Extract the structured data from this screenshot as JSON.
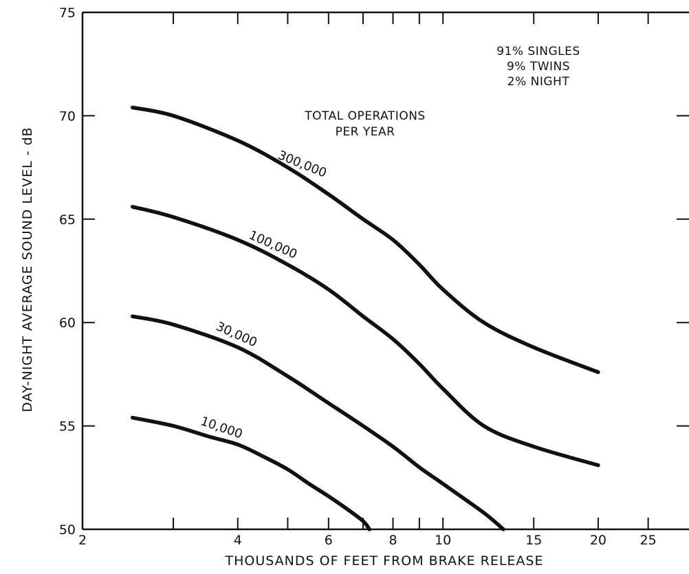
{
  "chart_data": {
    "type": "line",
    "xlabel": "THOUSANDS OF FEET FROM BRAKE RELEASE",
    "ylabel": "DAY-NIGHT AVERAGE SOUND LEVEL - dB",
    "x_scale": "log",
    "xlim": [
      2,
      30
    ],
    "ylim": [
      50,
      75
    ],
    "x_tick_labels": [
      "2",
      "4",
      "6",
      "8",
      "10",
      "15",
      "20",
      "25"
    ],
    "y_tick_labels": [
      "50",
      "55",
      "60",
      "65",
      "70",
      "75"
    ],
    "grid": false,
    "legend_title": [
      "TOTAL OPERATIONS",
      "PER YEAR"
    ],
    "annotations": [
      "91% SINGLES",
      "9% TWINS",
      "2% NIGHT"
    ],
    "color": "#111111",
    "series": [
      {
        "name": "300,000",
        "x": [
          2.5,
          3.0,
          4.0,
          5.0,
          6.0,
          7.0,
          8.0,
          9.0,
          10.0,
          12.0,
          15.0,
          20.0
        ],
        "y": [
          70.4,
          70.0,
          68.8,
          67.5,
          66.2,
          65.0,
          64.0,
          62.8,
          61.6,
          60.0,
          58.8,
          57.6
        ]
      },
      {
        "name": "100,000",
        "x": [
          2.5,
          3.0,
          4.0,
          5.0,
          6.0,
          7.0,
          8.0,
          9.0,
          10.0,
          12.0,
          15.0,
          20.0
        ],
        "y": [
          65.6,
          65.1,
          64.0,
          62.8,
          61.6,
          60.3,
          59.2,
          58.0,
          56.8,
          55.0,
          54.0,
          53.1
        ]
      },
      {
        "name": "30,000",
        "x": [
          2.5,
          3.0,
          4.0,
          5.0,
          6.0,
          7.0,
          8.0,
          9.0,
          10.0,
          12.0,
          13.1
        ],
        "y": [
          60.3,
          59.9,
          58.8,
          57.4,
          56.1,
          55.0,
          54.0,
          53.0,
          52.2,
          50.8,
          50.0
        ]
      },
      {
        "name": "10,000",
        "x": [
          2.5,
          3.0,
          3.5,
          4.0,
          4.5,
          5.0,
          5.5,
          6.0,
          6.5,
          7.0,
          7.2
        ],
        "y": [
          55.4,
          55.0,
          54.5,
          54.1,
          53.5,
          52.9,
          52.2,
          51.6,
          51.0,
          50.4,
          50.0
        ]
      }
    ]
  }
}
